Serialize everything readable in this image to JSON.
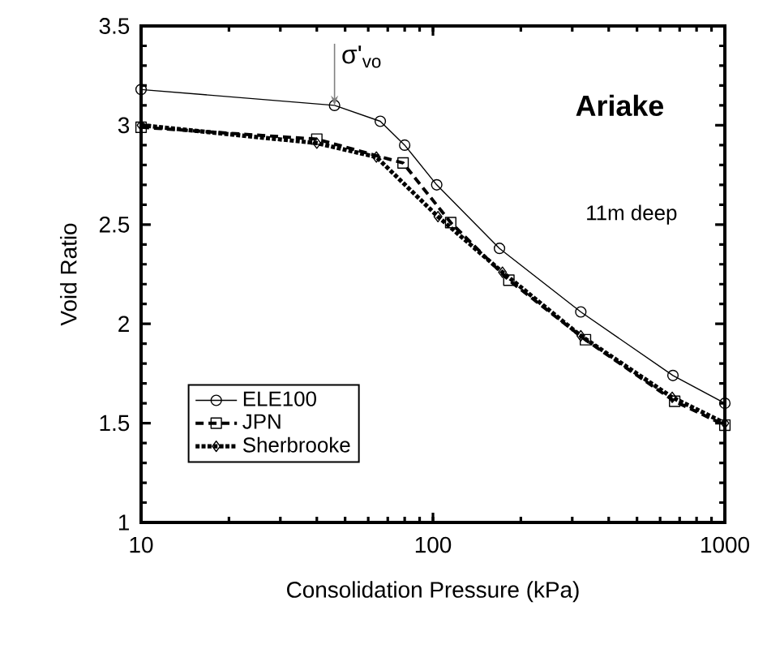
{
  "chart_data": {
    "type": "line",
    "xlabel": "Consolidation Pressure (kPa)",
    "ylabel": "Void Ratio",
    "log": "x",
    "xlim": [
      10,
      1000
    ],
    "xticks": [
      10,
      100,
      1000
    ],
    "ylim": [
      1,
      3.5
    ],
    "yticks": [
      1,
      1.5,
      2,
      2.5,
      3,
      3.5
    ],
    "grid": false,
    "legend": "bottom left",
    "series": [
      {
        "name": "ELE100",
        "color": "#000000",
        "marker": "circle",
        "line_style": "solid",
        "x": [
          10,
          46,
          66,
          80,
          103,
          169,
          321,
          664,
          1000
        ],
        "values": [
          3.18,
          3.1,
          3.02,
          2.9,
          2.7,
          2.38,
          2.06,
          1.74,
          1.6
        ]
      },
      {
        "name": "JPN",
        "color": "#000000",
        "marker": "square",
        "line_style": "dashed",
        "x": [
          10,
          40,
          79,
          115,
          182,
          333,
          673,
          1000
        ],
        "values": [
          2.99,
          2.93,
          2.81,
          2.51,
          2.22,
          1.92,
          1.61,
          1.49
        ]
      },
      {
        "name": "Sherbrooke",
        "color": "#000000",
        "marker": "diamond",
        "line_style": "dotted",
        "x": [
          10,
          40,
          64,
          104,
          173,
          321,
          660,
          1000
        ],
        "values": [
          3.0,
          2.91,
          2.84,
          2.54,
          2.26,
          1.94,
          1.63,
          1.5
        ]
      }
    ],
    "annotations": [
      {
        "text": "σ'$_{vo}$",
        "x": 46,
        "y": 3.1
      },
      "**Ariake**",
      "11m deep"
    ]
  }
}
